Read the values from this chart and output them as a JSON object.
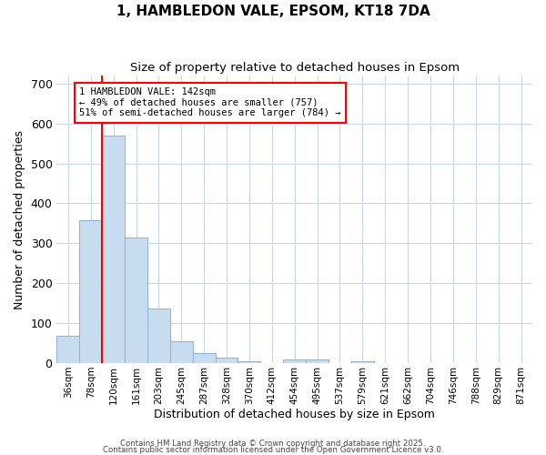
{
  "title1": "1, HAMBLEDON VALE, EPSOM, KT18 7DA",
  "title2": "Size of property relative to detached houses in Epsom",
  "xlabel": "Distribution of detached houses by size in Epsom",
  "ylabel": "Number of detached properties",
  "categories": [
    "36sqm",
    "78sqm",
    "120sqm",
    "161sqm",
    "203sqm",
    "245sqm",
    "287sqm",
    "328sqm",
    "370sqm",
    "412sqm",
    "454sqm",
    "495sqm",
    "537sqm",
    "579sqm",
    "621sqm",
    "662sqm",
    "704sqm",
    "746sqm",
    "788sqm",
    "829sqm",
    "871sqm"
  ],
  "values": [
    68,
    357,
    570,
    315,
    136,
    55,
    26,
    13,
    5,
    0,
    9,
    9,
    0,
    4,
    0,
    0,
    0,
    0,
    0,
    0,
    0
  ],
  "bar_color": "#c8dcf0",
  "bar_edge_color": "#88b4d8",
  "grid_color": "#c8d8ec",
  "background_color": "#ffffff",
  "vline_x": 1.5,
  "vline_color": "red",
  "annotation_text": "1 HAMBLEDON VALE: 142sqm\n← 49% of detached houses are smaller (757)\n51% of semi-detached houses are larger (784) →",
  "annotation_box_color": "white",
  "annotation_box_edge_color": "red",
  "ylim": [
    0,
    720
  ],
  "yticks": [
    0,
    100,
    200,
    300,
    400,
    500,
    600,
    700
  ],
  "footnote1": "Contains HM Land Registry data © Crown copyright and database right 2025.",
  "footnote2": "Contains public sector information licensed under the Open Government Licence v3.0."
}
